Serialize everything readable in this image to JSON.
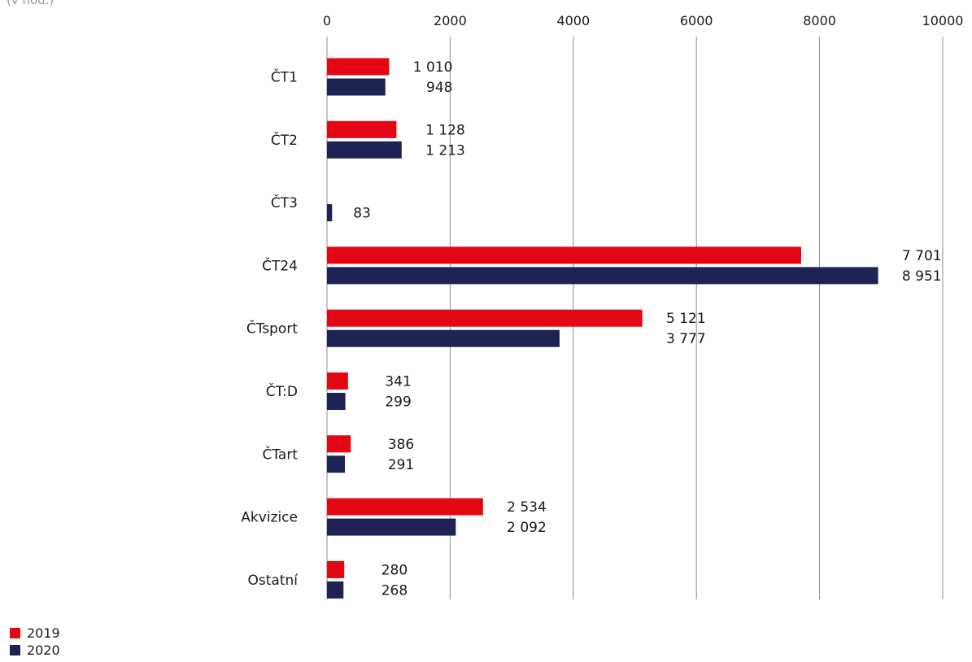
{
  "unit_note": "(v hod.)",
  "chart_data": {
    "type": "bar",
    "orientation": "horizontal",
    "categories": [
      "ČT1",
      "ČT2",
      "ČT3",
      "ČT24",
      "ČTsport",
      "ČT:D",
      "ČTart",
      "Akvizice",
      "Ostatní"
    ],
    "series": [
      {
        "name": "2019",
        "color": "#e30613",
        "values": [
          1010,
          1128,
          null,
          7701,
          5121,
          341,
          386,
          2534,
          280
        ],
        "labels": [
          "1 010",
          "1 128",
          "",
          "7 701",
          "5 121",
          "341",
          "386",
          "2 534",
          "280"
        ]
      },
      {
        "name": "2020",
        "color": "#1f2354",
        "values": [
          948,
          1213,
          83,
          8951,
          3777,
          299,
          291,
          2092,
          268
        ],
        "labels": [
          "948",
          "1 213",
          "83",
          "8 951",
          "3 777",
          "299",
          "291",
          "2 092",
          "268"
        ]
      }
    ],
    "xlim": [
      0,
      10000
    ],
    "ticks": [
      0,
      2000,
      4000,
      6000,
      8000,
      10000
    ],
    "tick_labels": [
      "0",
      "2000",
      "4000",
      "6000",
      "8000",
      "10000"
    ],
    "grid": true,
    "axis_position": "top",
    "legend_position": "bottom-left"
  }
}
